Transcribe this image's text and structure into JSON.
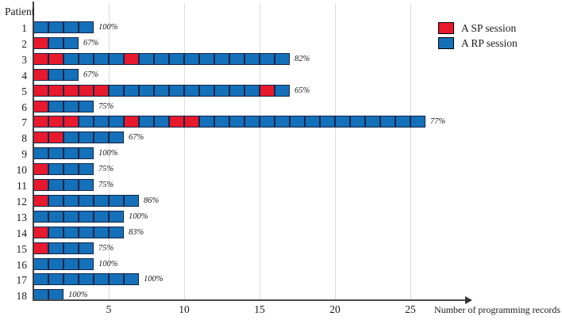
{
  "chart_data": {
    "type": "bar",
    "xlabel": "Number of programming records",
    "ylabel": "Patient",
    "x_ticks": [
      5,
      10,
      15,
      20,
      25
    ],
    "xlim": [
      0,
      28
    ],
    "grid": "vertical-light",
    "legend_position": "top-right",
    "colors": {
      "SP": "#e8192c",
      "RP": "#1470b8"
    },
    "square_border_color": "#14264a",
    "legend": [
      {
        "code": "SP",
        "label": "A SP session"
      },
      {
        "code": "RP",
        "label": "A RP session"
      }
    ],
    "patients": [
      {
        "id": "1",
        "rp_percent": "100%",
        "sessions": [
          "RP",
          "RP",
          "RP",
          "RP"
        ]
      },
      {
        "id": "2",
        "rp_percent": "67%",
        "sessions": [
          "SP",
          "RP",
          "RP"
        ]
      },
      {
        "id": "3",
        "rp_percent": "82%",
        "sessions": [
          "SP",
          "SP",
          "RP",
          "RP",
          "RP",
          "RP",
          "SP",
          "RP",
          "RP",
          "RP",
          "RP",
          "RP",
          "RP",
          "RP",
          "RP",
          "RP",
          "RP"
        ]
      },
      {
        "id": "4",
        "rp_percent": "67%",
        "sessions": [
          "SP",
          "RP",
          "RP"
        ]
      },
      {
        "id": "5",
        "rp_percent": "65%",
        "sessions": [
          "SP",
          "SP",
          "SP",
          "SP",
          "SP",
          "RP",
          "RP",
          "RP",
          "RP",
          "RP",
          "RP",
          "RP",
          "RP",
          "RP",
          "RP",
          "SP",
          "RP"
        ]
      },
      {
        "id": "6",
        "rp_percent": "75%",
        "sessions": [
          "SP",
          "RP",
          "RP",
          "RP"
        ]
      },
      {
        "id": "7",
        "rp_percent": "77%",
        "sessions": [
          "SP",
          "SP",
          "SP",
          "RP",
          "RP",
          "RP",
          "SP",
          "RP",
          "RP",
          "SP",
          "SP",
          "RP",
          "RP",
          "RP",
          "RP",
          "RP",
          "RP",
          "RP",
          "RP",
          "RP",
          "RP",
          "RP",
          "RP",
          "RP",
          "RP",
          "RP"
        ]
      },
      {
        "id": "8",
        "rp_percent": "67%",
        "sessions": [
          "SP",
          "SP",
          "RP",
          "RP",
          "RP",
          "RP"
        ]
      },
      {
        "id": "9",
        "rp_percent": "100%",
        "sessions": [
          "RP",
          "RP",
          "RP",
          "RP"
        ]
      },
      {
        "id": "10",
        "rp_percent": "75%",
        "sessions": [
          "SP",
          "RP",
          "RP",
          "RP"
        ]
      },
      {
        "id": "11",
        "rp_percent": "75%",
        "sessions": [
          "SP",
          "RP",
          "RP",
          "RP"
        ]
      },
      {
        "id": "12",
        "rp_percent": "86%",
        "sessions": [
          "SP",
          "RP",
          "RP",
          "RP",
          "RP",
          "RP",
          "RP"
        ]
      },
      {
        "id": "13",
        "rp_percent": "100%",
        "sessions": [
          "RP",
          "RP",
          "RP",
          "RP",
          "RP",
          "RP"
        ]
      },
      {
        "id": "14",
        "rp_percent": "83%",
        "sessions": [
          "SP",
          "RP",
          "RP",
          "RP",
          "RP",
          "RP"
        ]
      },
      {
        "id": "15",
        "rp_percent": "75%",
        "sessions": [
          "SP",
          "RP",
          "RP",
          "RP"
        ]
      },
      {
        "id": "16",
        "rp_percent": "100%",
        "sessions": [
          "RP",
          "RP",
          "RP",
          "RP"
        ]
      },
      {
        "id": "17",
        "rp_percent": "100%",
        "sessions": [
          "RP",
          "RP",
          "RP",
          "RP",
          "RP",
          "RP",
          "RP"
        ]
      },
      {
        "id": "18",
        "rp_percent": "100%",
        "sessions": [
          "RP",
          "RP"
        ]
      }
    ]
  }
}
